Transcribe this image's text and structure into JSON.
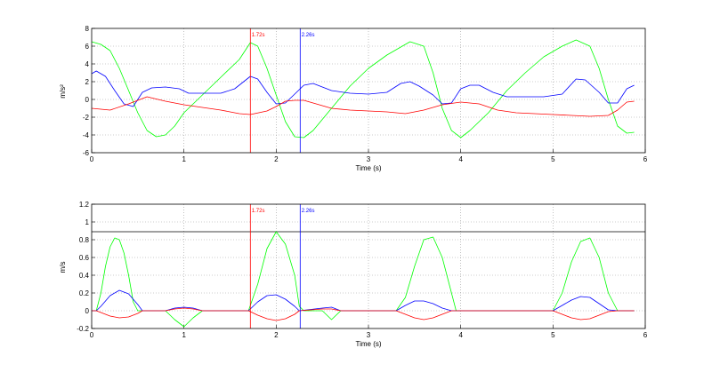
{
  "chart_data": [
    {
      "type": "line",
      "xlabel": "Time (s)",
      "ylabel": "m/s²",
      "xlim": [
        0,
        6
      ],
      "ylim": [
        -6,
        8
      ],
      "xticks": [
        "0",
        "1",
        "2",
        "3",
        "4",
        "5",
        "6"
      ],
      "yticks": [
        "-6",
        "-4",
        "-2",
        "0",
        "2",
        "4",
        "6",
        "8"
      ],
      "grid": true,
      "markers": [
        {
          "x": 1.72,
          "label": "1.72s",
          "color": "#ff0000"
        },
        {
          "x": 2.26,
          "label": "2.26s",
          "color": "#0000ff"
        }
      ],
      "series": [
        {
          "color": "#00ff00",
          "x": [
            0,
            0.1,
            0.2,
            0.3,
            0.4,
            0.5,
            0.6,
            0.7,
            0.8,
            0.9,
            1.0,
            1.2,
            1.4,
            1.6,
            1.72,
            1.8,
            1.9,
            2.0,
            2.1,
            2.2,
            2.3,
            2.4,
            2.6,
            2.8,
            3.0,
            3.2,
            3.45,
            3.6,
            3.7,
            3.8,
            3.9,
            4.0,
            4.1,
            4.3,
            4.5,
            4.7,
            4.9,
            5.1,
            5.25,
            5.4,
            5.5,
            5.6,
            5.7,
            5.8,
            5.88
          ],
          "y": [
            6.5,
            6.2,
            5.5,
            3.5,
            1.0,
            -1.5,
            -3.5,
            -4.2,
            -4.0,
            -3.0,
            -1.5,
            0.5,
            2.5,
            4.5,
            6.4,
            6.0,
            3.5,
            0.5,
            -2.5,
            -4.2,
            -4.3,
            -3.5,
            -1.0,
            1.5,
            3.5,
            5.0,
            6.5,
            6.0,
            3.0,
            -1.0,
            -3.5,
            -4.3,
            -3.5,
            -1.5,
            1.0,
            3.0,
            4.8,
            6.0,
            6.7,
            6.0,
            3.5,
            0,
            -3.0,
            -3.8,
            -3.7
          ]
        },
        {
          "color": "#0000ff",
          "x": [
            0,
            0.05,
            0.15,
            0.25,
            0.35,
            0.45,
            0.55,
            0.65,
            0.8,
            0.95,
            1.05,
            1.2,
            1.4,
            1.55,
            1.72,
            1.8,
            1.9,
            2.0,
            2.1,
            2.2,
            2.3,
            2.4,
            2.6,
            2.8,
            3.0,
            3.2,
            3.35,
            3.45,
            3.55,
            3.7,
            3.8,
            3.9,
            4.0,
            4.1,
            4.2,
            4.35,
            4.5,
            4.7,
            4.9,
            5.1,
            5.25,
            5.35,
            5.5,
            5.6,
            5.7,
            5.8,
            5.88
          ],
          "y": [
            2.9,
            3.2,
            2.6,
            1.0,
            -0.5,
            -0.8,
            0.8,
            1.3,
            1.4,
            1.2,
            0.7,
            0.7,
            0.7,
            1.2,
            2.6,
            2.3,
            0.8,
            -0.5,
            -0.4,
            0.6,
            1.6,
            1.8,
            1.0,
            0.7,
            0.6,
            0.8,
            1.8,
            2.0,
            1.5,
            0.5,
            -0.5,
            -0.4,
            1.2,
            1.6,
            1.6,
            0.8,
            0.3,
            0.3,
            0.3,
            0.6,
            2.3,
            2.2,
            0.8,
            -0.4,
            -0.4,
            1.2,
            1.6
          ]
        },
        {
          "color": "#ff0000",
          "x": [
            0,
            0.2,
            0.4,
            0.6,
            0.8,
            1.0,
            1.2,
            1.4,
            1.6,
            1.72,
            1.9,
            2.0,
            2.1,
            2.2,
            2.3,
            2.4,
            2.6,
            2.8,
            3.0,
            3.2,
            3.4,
            3.6,
            3.8,
            4.0,
            4.2,
            4.4,
            4.6,
            4.8,
            5.0,
            5.2,
            5.4,
            5.6,
            5.7,
            5.8,
            5.88
          ],
          "y": [
            -1.0,
            -1.2,
            -0.5,
            0.3,
            -0.2,
            -0.6,
            -0.9,
            -1.2,
            -1.6,
            -1.7,
            -1.3,
            -0.8,
            -0.2,
            -0.1,
            -0.1,
            -0.4,
            -1.0,
            -1.2,
            -1.3,
            -1.4,
            -1.6,
            -1.2,
            -0.6,
            -0.3,
            -0.5,
            -1.2,
            -1.5,
            -1.6,
            -1.7,
            -1.8,
            -1.9,
            -1.8,
            -1.2,
            -0.3,
            -0.2
          ]
        }
      ]
    },
    {
      "type": "line",
      "xlabel": "Time (s)",
      "ylabel": "m/s",
      "xlim": [
        0,
        6
      ],
      "ylim": [
        -0.2,
        1.2
      ],
      "xticks": [
        "0",
        "1",
        "2",
        "3",
        "4",
        "5",
        "6"
      ],
      "yticks": [
        "-0.2",
        "0",
        "0.2",
        "0.4",
        "0.6",
        "0.8",
        "1",
        "1.2"
      ],
      "grid": true,
      "hline": 0.89,
      "markers": [
        {
          "x": 1.72,
          "label": "1.72s",
          "color": "#ff0000"
        },
        {
          "x": 2.26,
          "label": "2.26s",
          "color": "#0000ff"
        }
      ],
      "series": [
        {
          "color": "#00ff00",
          "x": [
            0,
            0.05,
            0.1,
            0.15,
            0.2,
            0.25,
            0.3,
            0.35,
            0.4,
            0.45,
            0.5,
            0.55,
            0.8,
            0.9,
            1.0,
            1.1,
            1.2,
            1.7,
            1.8,
            1.9,
            2.0,
            2.1,
            2.2,
            2.25,
            2.3,
            2.5,
            2.6,
            2.7,
            3.3,
            3.4,
            3.5,
            3.6,
            3.7,
            3.8,
            3.9,
            3.95,
            4.0,
            5.0,
            5.1,
            5.2,
            5.3,
            5.4,
            5.5,
            5.6,
            5.7,
            5.8,
            5.88
          ],
          "y": [
            0,
            0,
            0.2,
            0.5,
            0.72,
            0.82,
            0.8,
            0.65,
            0.4,
            0.1,
            0,
            0,
            0,
            -0.1,
            -0.18,
            -0.08,
            0,
            0,
            0.3,
            0.7,
            0.89,
            0.75,
            0.4,
            0.05,
            0,
            0,
            -0.1,
            0,
            0,
            0.15,
            0.5,
            0.8,
            0.83,
            0.6,
            0.2,
            0,
            0,
            0,
            0.2,
            0.55,
            0.78,
            0.82,
            0.6,
            0.2,
            0,
            0,
            0
          ]
        },
        {
          "color": "#0000ff",
          "x": [
            0,
            0.05,
            0.1,
            0.2,
            0.3,
            0.4,
            0.5,
            0.55,
            0.8,
            0.9,
            1.0,
            1.1,
            1.2,
            1.7,
            1.8,
            1.9,
            2.0,
            2.1,
            2.2,
            2.25,
            2.5,
            2.6,
            2.7,
            3.3,
            3.4,
            3.5,
            3.6,
            3.7,
            3.8,
            3.9,
            3.95,
            5.0,
            5.1,
            5.2,
            5.3,
            5.4,
            5.5,
            5.6,
            5.7,
            5.88
          ],
          "y": [
            0,
            0,
            0.05,
            0.17,
            0.23,
            0.19,
            0.07,
            0,
            0,
            0.03,
            0.04,
            0.03,
            0,
            0,
            0.1,
            0.17,
            0.18,
            0.13,
            0.05,
            0,
            0.03,
            0.04,
            0,
            0,
            0.06,
            0.11,
            0.11,
            0.08,
            0.03,
            0,
            0,
            0,
            0.06,
            0.12,
            0.16,
            0.15,
            0.08,
            0.01,
            0,
            0
          ]
        },
        {
          "color": "#ff0000",
          "x": [
            0,
            0.05,
            0.1,
            0.2,
            0.3,
            0.4,
            0.5,
            0.55,
            0.8,
            0.9,
            1.0,
            1.1,
            1.2,
            1.7,
            1.8,
            1.9,
            2.0,
            2.1,
            2.2,
            2.25,
            2.5,
            2.6,
            2.7,
            3.3,
            3.4,
            3.5,
            3.6,
            3.7,
            3.8,
            3.9,
            3.95,
            5.0,
            5.1,
            5.2,
            5.3,
            5.4,
            5.5,
            5.6,
            5.7,
            5.88
          ],
          "y": [
            0,
            0,
            -0.02,
            -0.06,
            -0.08,
            -0.07,
            -0.03,
            0,
            0,
            0.02,
            0.03,
            0.02,
            0,
            0,
            -0.05,
            -0.09,
            -0.11,
            -0.09,
            -0.04,
            0,
            0.02,
            0.02,
            0,
            0,
            -0.04,
            -0.08,
            -0.1,
            -0.08,
            -0.04,
            0,
            0,
            0,
            -0.04,
            -0.08,
            -0.1,
            -0.09,
            -0.05,
            -0.01,
            0,
            0
          ]
        }
      ]
    }
  ]
}
